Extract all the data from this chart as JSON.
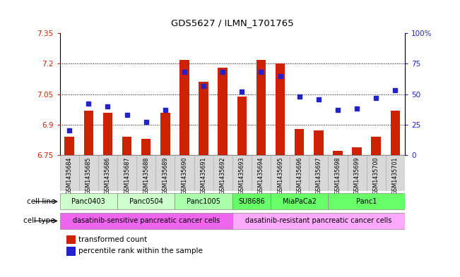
{
  "title": "GDS5627 / ILMN_1701765",
  "samples": [
    "GSM1435684",
    "GSM1435685",
    "GSM1435686",
    "GSM1435687",
    "GSM1435688",
    "GSM1435689",
    "GSM1435690",
    "GSM1435691",
    "GSM1435692",
    "GSM1435693",
    "GSM1435694",
    "GSM1435695",
    "GSM1435696",
    "GSM1435697",
    "GSM1435698",
    "GSM1435699",
    "GSM1435700",
    "GSM1435701"
  ],
  "bar_values": [
    6.84,
    6.97,
    6.96,
    6.84,
    6.83,
    6.96,
    7.22,
    7.11,
    7.18,
    7.04,
    7.22,
    7.2,
    6.88,
    6.87,
    6.77,
    6.79,
    6.84,
    6.97
  ],
  "dot_values_pct": [
    20,
    42,
    40,
    33,
    27,
    37,
    68,
    57,
    68,
    52,
    68,
    65,
    48,
    46,
    37,
    38,
    47,
    53
  ],
  "ylim_left": [
    6.75,
    7.35
  ],
  "ylim_right": [
    0,
    100
  ],
  "yticks_left": [
    6.75,
    6.9,
    7.05,
    7.2,
    7.35
  ],
  "yticks_right": [
    0,
    25,
    50,
    75,
    100
  ],
  "ytick_labels_left": [
    "6.75",
    "6.9",
    "7.05",
    "7.2",
    "7.35"
  ],
  "ytick_labels_right": [
    "0",
    "25",
    "50",
    "75",
    "100%"
  ],
  "cell_lines": [
    {
      "label": "Panc0403",
      "start": 0,
      "end": 3,
      "color": "#ccffcc"
    },
    {
      "label": "Panc0504",
      "start": 3,
      "end": 6,
      "color": "#ccffcc"
    },
    {
      "label": "Panc1005",
      "start": 6,
      "end": 9,
      "color": "#aaffaa"
    },
    {
      "label": "SU8686",
      "start": 9,
      "end": 11,
      "color": "#66ff66"
    },
    {
      "label": "MiaPaCa2",
      "start": 11,
      "end": 14,
      "color": "#66ff66"
    },
    {
      "label": "Panc1",
      "start": 14,
      "end": 18,
      "color": "#66ff66"
    }
  ],
  "cell_types": [
    {
      "label": "dasatinib-sensitive pancreatic cancer cells",
      "start": 0,
      "end": 9,
      "color": "#ee66ee"
    },
    {
      "label": "dasatinib-resistant pancreatic cancer cells",
      "start": 9,
      "end": 18,
      "color": "#ffaaff"
    }
  ],
  "bar_color": "#cc2200",
  "dot_color": "#2222cc",
  "bar_width": 0.5,
  "background_color": "#ffffff",
  "left_axis_color": "#cc2200",
  "right_axis_color": "#2222cc",
  "gridline_color": "black",
  "gridline_y": [
    6.9,
    7.05,
    7.2
  ]
}
